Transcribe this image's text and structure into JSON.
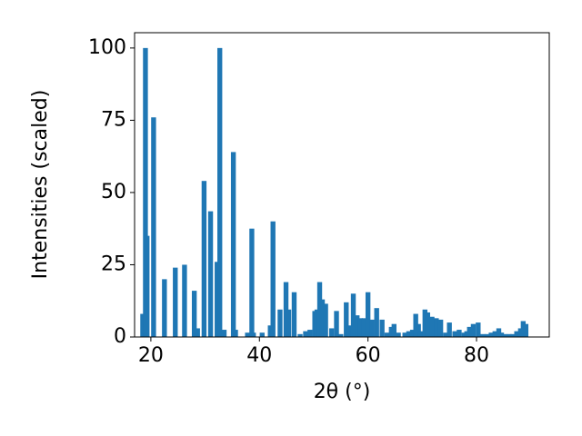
{
  "chart_data": {
    "type": "bar",
    "color": "#1f77b4",
    "xlabel": "2θ (°)",
    "ylabel": "Intensities (scaled)",
    "x": [
      18.5,
      19,
      19.3,
      20.5,
      22.5,
      24.5,
      26.2,
      28,
      28.6,
      29.8,
      31,
      32.2,
      32.7,
      33.5,
      35.2,
      35.6,
      37.8,
      38.6,
      38.9,
      40.5,
      42,
      42.5,
      43.8,
      44.9,
      45.4,
      46.4,
      47.5,
      48.5,
      49.3,
      50.2,
      50.6,
      51.1,
      51.6,
      52.2,
      53.3,
      54.2,
      55,
      56,
      56.6,
      57.3,
      58,
      58.6,
      59.3,
      60,
      60.7,
      61.6,
      62.6,
      63.5,
      64.3,
      64.8,
      65.6,
      66.8,
      67.5,
      68.2,
      68.8,
      69.3,
      69.7,
      70.5,
      71,
      71.8,
      72.6,
      73.4,
      74.3,
      75,
      76,
      76.8,
      77.7,
      78.2,
      78.7,
      79.4,
      80.3,
      81.2,
      82,
      82.7,
      83.4,
      84.1,
      84.6,
      85.2,
      86,
      86.7,
      87.4,
      88.1,
      88.6,
      89.1
    ],
    "values": [
      8,
      100,
      35,
      76,
      20,
      24,
      25,
      16,
      3,
      54,
      43.5,
      26,
      100,
      2.5,
      64,
      2.5,
      1.5,
      37.5,
      1.5,
      1.5,
      4,
      40,
      9.5,
      19,
      9.5,
      15.5,
      1,
      2,
      2.5,
      9,
      9.5,
      19,
      13,
      11.5,
      3,
      9,
      1,
      12,
      4,
      15,
      7.5,
      6.5,
      6.5,
      15.5,
      6,
      10,
      6,
      1.5,
      3.5,
      4.5,
      1.5,
      1.5,
      2,
      2.5,
      8,
      4.5,
      2,
      9.5,
      8.5,
      7,
      6.5,
      6,
      1.5,
      5,
      2,
      2.5,
      1.5,
      2,
      3.5,
      4.5,
      5,
      1,
      1,
      1.5,
      2,
      3,
      1.5,
      1,
      1,
      1,
      2,
      3,
      5.5,
      4.5
    ],
    "xlim": [
      17,
      93.4
    ],
    "ylim": [
      0,
      105.3
    ],
    "xticks": [
      20,
      40,
      60,
      80
    ],
    "yticks": [
      0,
      25,
      50,
      75,
      100
    ]
  }
}
